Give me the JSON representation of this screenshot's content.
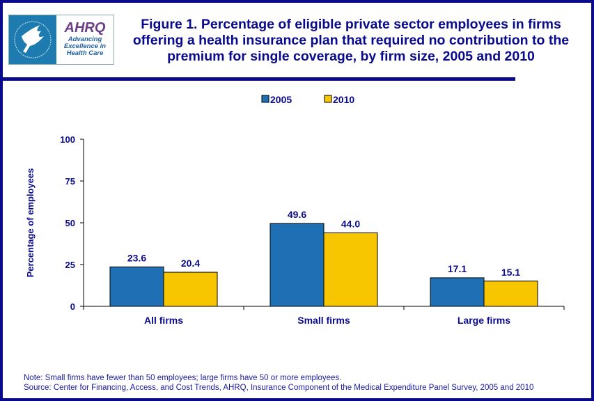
{
  "logo": {
    "hhs_text": "Department of Health & Human Services USA",
    "ahrq_mark": "AHRQ",
    "ahrq_tagline": [
      "Advancing",
      "Excellence in",
      "Health Care"
    ]
  },
  "title": "Figure 1. Percentage of eligible private sector employees in firms offering a health insurance plan that required no contribution to the premium for single coverage, by firm size, 2005 and 2010",
  "notes": {
    "note": "Note: Small firms have fewer than 50 employees; large firms have 50 or more employees.",
    "source": "Source: Center for Financing, Access, and Cost Trends, AHRQ, Insurance Component of the Medical Expenditure Panel Survey, 2005 and 2010"
  },
  "colors": {
    "border": "#0a0a8c",
    "s2005": "#1f6fb5",
    "s2010": "#f7c600"
  },
  "chart_data": {
    "type": "bar",
    "categories": [
      "All firms",
      "Small firms",
      "Large firms"
    ],
    "series": [
      {
        "name": "2005",
        "values": [
          23.6,
          49.6,
          17.1
        ],
        "labels": [
          "23.6",
          "49.6",
          "17.1"
        ],
        "color": "#1f6fb5"
      },
      {
        "name": "2010",
        "values": [
          20.4,
          44.0,
          15.1
        ],
        "labels": [
          "20.4",
          "44.0",
          "15.1"
        ],
        "color": "#f7c600"
      }
    ],
    "ylabel": "Percentage of employees",
    "ylim": [
      0,
      100
    ],
    "yticks": [
      0,
      25,
      50,
      75,
      100
    ],
    "grid": false,
    "legend": "top-center"
  }
}
